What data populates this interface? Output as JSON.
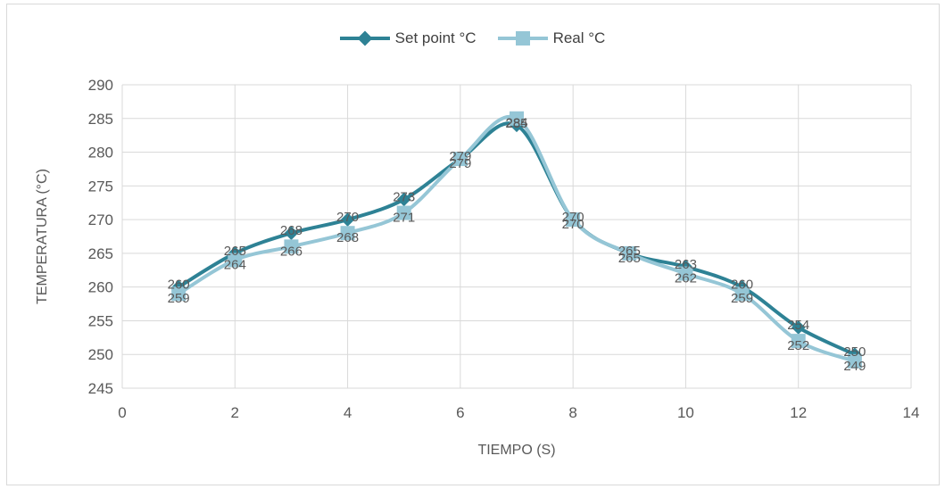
{
  "colors": {
    "set_point": "#2e8295",
    "real": "#95c6d6",
    "grid": "#d9d9d9",
    "text": "#595959"
  },
  "chart_data": {
    "type": "line",
    "xlabel": "TIEMPO (S)",
    "ylabel": "TEMPERATURA  (°C)",
    "xlim": [
      0,
      14
    ],
    "ylim": [
      245,
      290
    ],
    "x_ticks": [
      0,
      2,
      4,
      6,
      8,
      10,
      12,
      14
    ],
    "y_ticks": [
      245,
      250,
      255,
      260,
      265,
      270,
      275,
      280,
      285,
      290
    ],
    "grid": true,
    "legend_position": "top",
    "smooth": true,
    "series": [
      {
        "name": "Set point °C",
        "marker": "diamond",
        "x": [
          1,
          2,
          3,
          4,
          5,
          6,
          7,
          8,
          9,
          10,
          11,
          12,
          13
        ],
        "y": [
          260,
          265,
          268,
          270,
          273,
          279,
          284,
          270,
          265,
          263,
          260,
          254,
          250
        ],
        "labels": [
          "260",
          "265",
          "268",
          "270",
          "273",
          "279",
          "284",
          "270",
          "265",
          "263",
          "260",
          "254",
          "250"
        ]
      },
      {
        "name": "Real °C",
        "marker": "square",
        "x": [
          1,
          2,
          3,
          4,
          5,
          6,
          7,
          8,
          9,
          10,
          11,
          12,
          13
        ],
        "y": [
          259,
          264,
          266,
          268,
          271,
          279,
          285,
          270,
          265,
          262,
          259,
          252,
          249
        ],
        "labels": [
          "259",
          "264",
          "266",
          "268",
          "271",
          "279",
          "285",
          "270",
          "265",
          "262",
          "259",
          "252",
          "249"
        ]
      }
    ]
  }
}
